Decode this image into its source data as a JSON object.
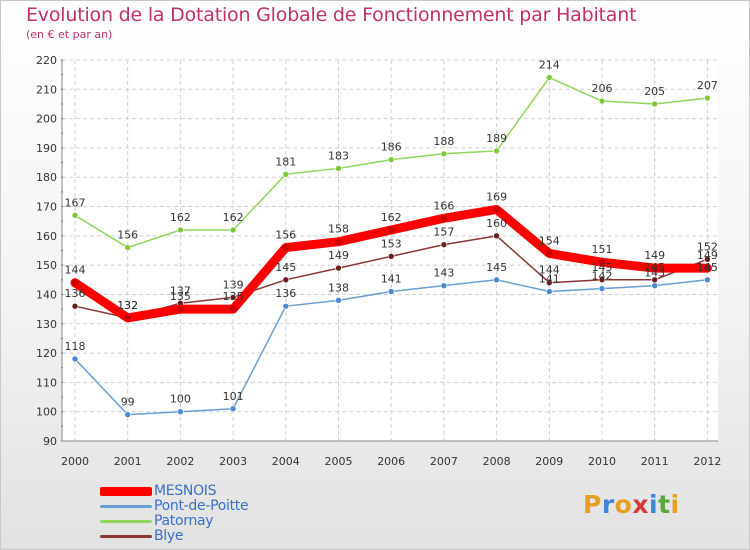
{
  "title": "Evolution de la Dotation Globale de Fonctionnement par Habitant",
  "subtitle": "(en € et par an)",
  "logo": {
    "letters": [
      "P",
      "r",
      "o",
      "x",
      "i",
      "t",
      "i"
    ],
    "colors": [
      "#e8a020",
      "#3f86d6",
      "#e8a020",
      "#d83a3a",
      "#3f86d6",
      "#5aa83a",
      "#e8a020"
    ]
  },
  "chart_data": {
    "type": "line",
    "title": "Evolution de la Dotation Globale de Fonctionnement par Habitant",
    "subtitle": "(en € et par an)",
    "xlabel": "",
    "ylabel": "",
    "x": [
      "2000",
      "2001",
      "2002",
      "2003",
      "2004",
      "2005",
      "2006",
      "2007",
      "2008",
      "2009",
      "2010",
      "2011",
      "2012"
    ],
    "ylim": [
      90,
      220
    ],
    "yticks": [
      90,
      100,
      110,
      120,
      130,
      140,
      150,
      160,
      170,
      180,
      190,
      200,
      210,
      220
    ],
    "grid": true,
    "legend_position": "bottom-left",
    "series": [
      {
        "name": "MESNOIS",
        "color": "#ff0000",
        "values": [
          144,
          132,
          135,
          135,
          156,
          158,
          162,
          166,
          169,
          154,
          151,
          149,
          149
        ],
        "labels": [
          "144",
          "132",
          "135",
          "135",
          "156",
          "158",
          "162",
          "166",
          "169",
          "154",
          "151",
          "149",
          "149"
        ]
      },
      {
        "name": "Pont-de-Poitte",
        "color": "#6a9fd4",
        "values": [
          118,
          99,
          100,
          101,
          136,
          138,
          141,
          143,
          145,
          141,
          142,
          143,
          145
        ],
        "labels": [
          "118",
          "99",
          "100",
          "101",
          "136",
          "138",
          "141",
          "143",
          "145",
          "141",
          "142",
          "143",
          "145"
        ]
      },
      {
        "name": "Patornay",
        "color": "#8fd65a",
        "values": [
          167,
          156,
          162,
          162,
          181,
          183,
          186,
          188,
          189,
          214,
          206,
          205,
          207
        ],
        "labels": [
          "167",
          "156",
          "162",
          "162",
          "181",
          "183",
          "186",
          "188",
          "189",
          "214",
          "206",
          "205",
          "207"
        ]
      },
      {
        "name": "Blye",
        "color": "#8b3535",
        "values": [
          136,
          132,
          137,
          139,
          145,
          149,
          153,
          157,
          160,
          144,
          145,
          145,
          152
        ],
        "labels": [
          "136",
          "132",
          "137",
          "139",
          "145",
          "149",
          "153",
          "157",
          "160",
          "144",
          "145",
          "145",
          "152"
        ]
      }
    ]
  }
}
